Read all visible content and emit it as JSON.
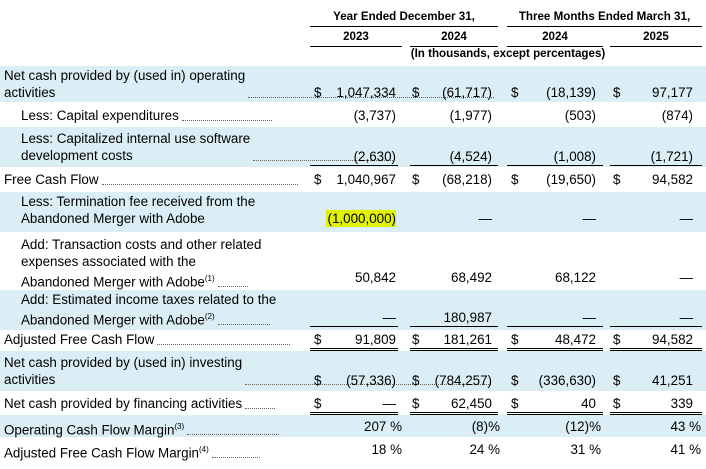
{
  "header": {
    "group_year": "Year Ended December 31,",
    "group_quarter": "Three Months Ended March 31,",
    "columns": [
      "2023",
      "2024",
      "2024",
      "2025"
    ],
    "note": "(In thousands, except percentages)"
  },
  "rows": [
    {
      "label_lines": [
        "Net cash provided by (used in) operating",
        "activities"
      ],
      "cells": [
        {
          "dol": "$",
          "num": "1,047,334"
        },
        {
          "dol": "$",
          "num": "(61,717)"
        },
        {
          "dol": "$",
          "num": "(18,139)"
        },
        {
          "dol": "$",
          "num": "97,177"
        }
      ]
    },
    {
      "label_lines": [
        "Less: Capital expenditures"
      ],
      "cells": [
        {
          "dol": "",
          "num": "(3,737)"
        },
        {
          "dol": "",
          "num": "(1,977)"
        },
        {
          "dol": "",
          "num": "(503)"
        },
        {
          "dol": "",
          "num": "(874)"
        }
      ]
    },
    {
      "label_lines": [
        "Less: Capitalized internal use software",
        "development costs"
      ],
      "cells": [
        {
          "dol": "",
          "num": "(2,630)"
        },
        {
          "dol": "",
          "num": "(4,524)"
        },
        {
          "dol": "",
          "num": "(1,008)"
        },
        {
          "dol": "",
          "num": "(1,721)"
        }
      ]
    },
    {
      "label_lines": [
        "Free Cash Flow"
      ],
      "cells": [
        {
          "dol": "$",
          "num": "1,040,967"
        },
        {
          "dol": "$",
          "num": "(68,218)"
        },
        {
          "dol": "$",
          "num": "(19,650)"
        },
        {
          "dol": "$",
          "num": "94,582"
        }
      ]
    },
    {
      "label_lines": [
        "Less: Termination fee received from the",
        "Abandoned Merger with Adobe"
      ],
      "cells": [
        {
          "dol": "",
          "num": "(1,000,000)"
        },
        {
          "dol": "",
          "num": "—"
        },
        {
          "dol": "",
          "num": "—"
        },
        {
          "dol": "",
          "num": "—"
        }
      ]
    },
    {
      "label_lines": [
        "Add: Transaction costs and other related",
        "expenses associated with the",
        "Abandoned Merger with Adobe"
      ],
      "footnote": "(1)",
      "cells": [
        {
          "dol": "",
          "num": "50,842"
        },
        {
          "dol": "",
          "num": "68,492"
        },
        {
          "dol": "",
          "num": "68,122"
        },
        {
          "dol": "",
          "num": "—"
        }
      ]
    },
    {
      "label_lines": [
        "Add: Estimated income taxes related to the",
        "Abandoned Merger with Adobe"
      ],
      "footnote": "(2)",
      "cells": [
        {
          "dol": "",
          "num": "—"
        },
        {
          "dol": "",
          "num": "180,987"
        },
        {
          "dol": "",
          "num": "—"
        },
        {
          "dol": "",
          "num": "—"
        }
      ]
    },
    {
      "label_lines": [
        "Adjusted Free Cash Flow"
      ],
      "cells": [
        {
          "dol": "$",
          "num": "91,809"
        },
        {
          "dol": "$",
          "num": "181,261"
        },
        {
          "dol": "$",
          "num": "48,472"
        },
        {
          "dol": "$",
          "num": "94,582"
        }
      ]
    },
    {
      "label_lines": [
        "Net cash provided by (used in) investing",
        "activities"
      ],
      "cells": [
        {
          "dol": "$",
          "num": "(57,336)"
        },
        {
          "dol": "$",
          "num": "(784,257)"
        },
        {
          "dol": "$",
          "num": "(336,630)"
        },
        {
          "dol": "$",
          "num": "41,251"
        }
      ]
    },
    {
      "label_lines": [
        "Net cash provided by financing activities"
      ],
      "cells": [
        {
          "dol": "$",
          "num": "—"
        },
        {
          "dol": "$",
          "num": "62,450"
        },
        {
          "dol": "$",
          "num": "40"
        },
        {
          "dol": "$",
          "num": "339"
        }
      ]
    },
    {
      "label_lines": [
        "Operating Cash Flow Margin"
      ],
      "footnote": "(3)",
      "cells": [
        {
          "dol": "",
          "num": "207 %"
        },
        {
          "dol": "",
          "num": "(8)%"
        },
        {
          "dol": "",
          "num": "(12)%"
        },
        {
          "dol": "",
          "num": "43 %"
        }
      ]
    },
    {
      "label_lines": [
        "Adjusted Free Cash Flow Margin"
      ],
      "footnote": "(4)",
      "cells": [
        {
          "dol": "",
          "num": "18 %"
        },
        {
          "dol": "",
          "num": "24 %"
        },
        {
          "dol": "",
          "num": "31 %"
        },
        {
          "dol": "",
          "num": "41 %"
        }
      ]
    }
  ],
  "colors": {
    "band": "#dbeef6",
    "highlight": "#dff200"
  }
}
